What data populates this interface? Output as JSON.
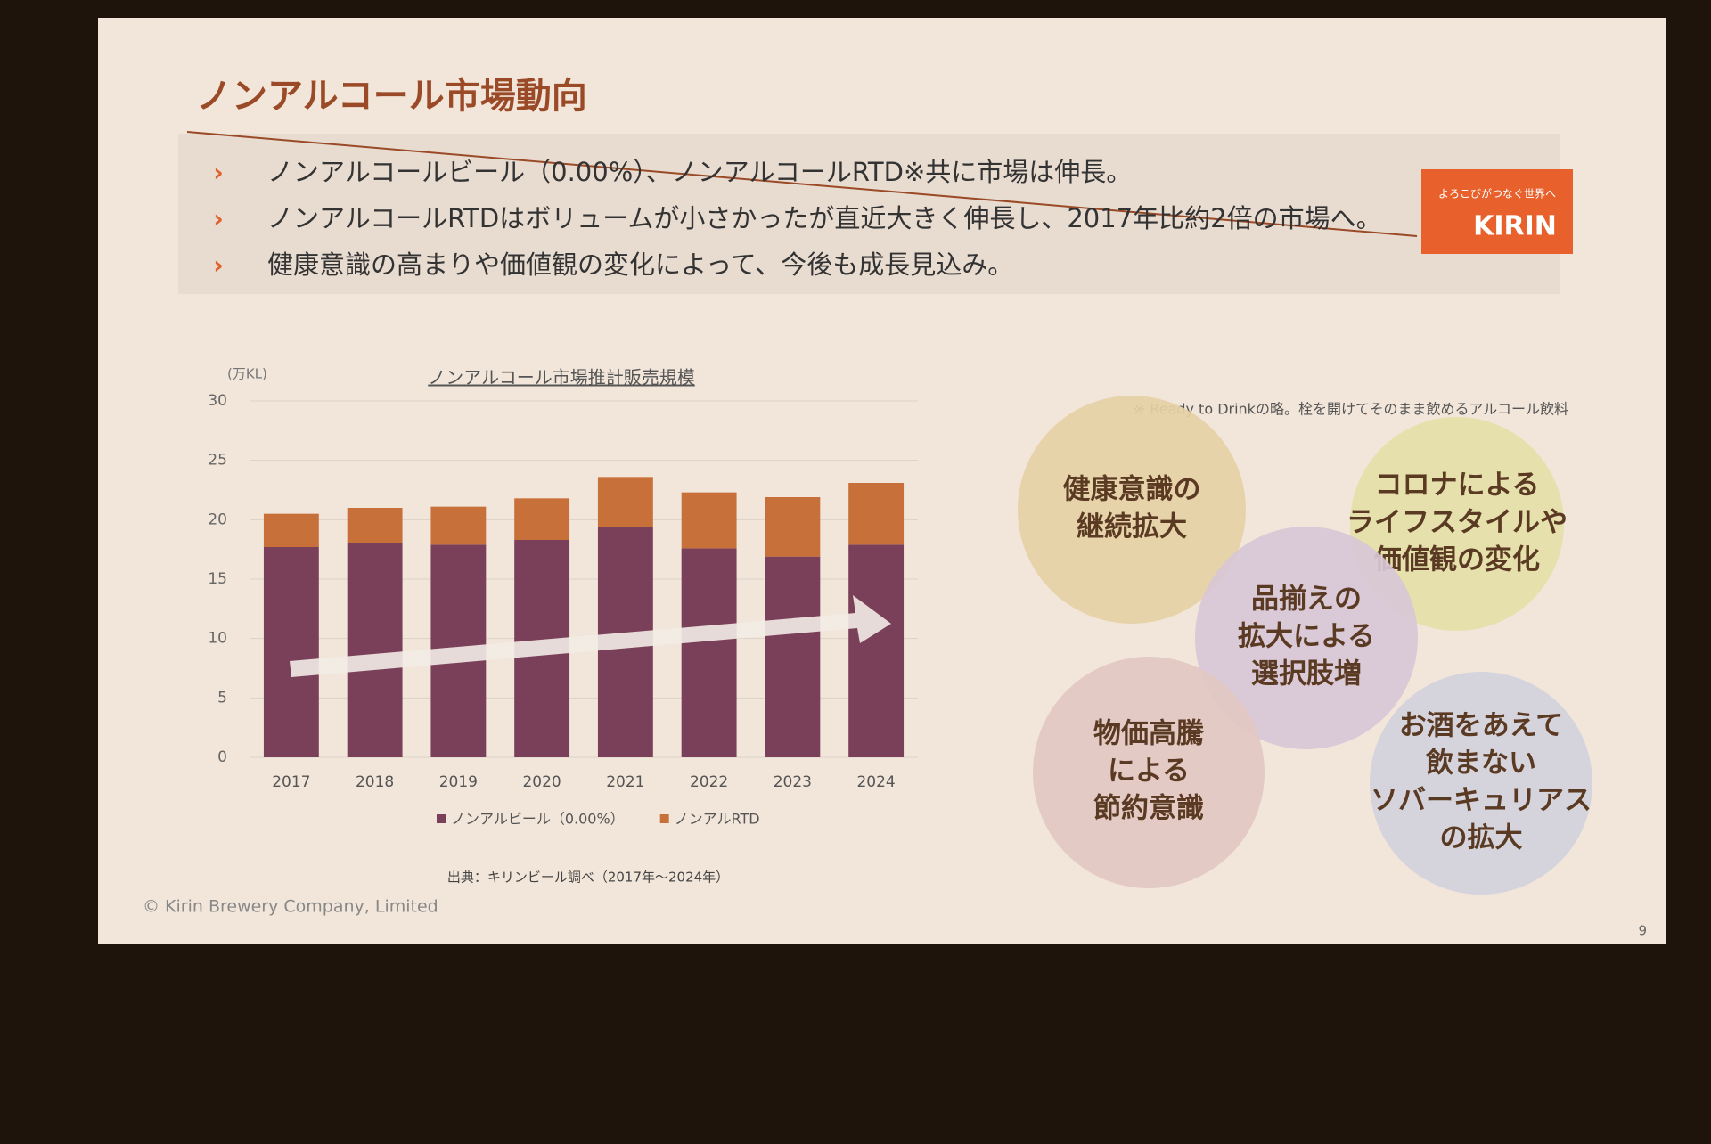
{
  "slide_title": "ノンアルコール市場動向",
  "bullets": [
    "ノンアルコールビール（0.00%）、ノンアルコールRTD※共に市場は伸長。",
    "ノンアルコールRTDはボリュームが小さかったが直近大きく伸長し、2017年比約2倍の市場へ。",
    "健康意識の高まりや価値観の変化によって、今後も成長見込み。"
  ],
  "logo": {
    "tagline": "よろこびがつなぐ世界へ",
    "brand": "KIRIN"
  },
  "note": "※ Ready to Drinkの略。栓を開けてそのまま飲めるアルコール飲料",
  "chart_data": {
    "type": "stacked_bar",
    "title": "ノンアルコール市場推計販売規模",
    "y_unit": "(万KL)",
    "categories": [
      "2017",
      "2018",
      "2019",
      "2020",
      "2021",
      "2022",
      "2023",
      "2024"
    ],
    "series": [
      {
        "name": "ノンアルビール（0.00%）",
        "color": "#7b4059",
        "values": [
          17.7,
          18.0,
          17.9,
          18.3,
          19.4,
          17.6,
          16.9,
          17.9
        ]
      },
      {
        "name": "ノンアルRTD",
        "color": "#c8703a",
        "values": [
          2.8,
          3.0,
          3.2,
          3.5,
          4.2,
          4.7,
          5.0,
          5.2
        ]
      }
    ],
    "ylim": [
      0,
      30
    ],
    "yticks": [
      0,
      5,
      10,
      15,
      20,
      25,
      30
    ],
    "grid": true,
    "source": "出典：キリンビール調べ（2017年～2024年）"
  },
  "bubbles": [
    [
      "健康意識の",
      "継続拡大"
    ],
    [
      "コロナによる",
      "ライフスタイルや",
      "価値観の変化"
    ],
    [
      "品揃えの",
      "拡大による",
      "選択肢増"
    ],
    [
      "物価高騰",
      "による",
      "節約意識"
    ],
    [
      "お酒をあえて",
      "飲まない",
      "ソバーキュリアス",
      "の拡大"
    ]
  ],
  "footer": "© Kirin  Brewery Company, Limited",
  "page_number": "9"
}
